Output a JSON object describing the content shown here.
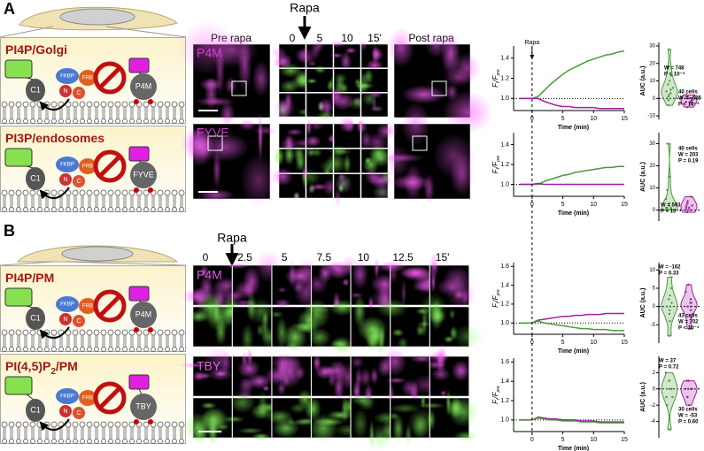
{
  "panel_letters": [
    "A",
    "B"
  ],
  "cartoon_labels": {
    "c1": "C1",
    "fkbp": "FKBP",
    "frb": "FRB",
    "n": "N",
    "c": "C"
  },
  "cartoons": [
    {
      "title": [
        "PI4P/Golgi"
      ],
      "probe": "P4M"
    },
    {
      "title": [
        "PI3P/endosomes"
      ],
      "probe": "FYVE"
    },
    {
      "title": [
        "PI4P/PM"
      ],
      "probe": "P4M"
    },
    {
      "title": [
        "PI(4,5)P",
        "2",
        "/PM"
      ],
      "probe": "TBY"
    }
  ],
  "micro_a": {
    "pre": "Pre rapa",
    "post": "Post rapa",
    "rapa": "Rapa",
    "times": [
      "0",
      "5",
      "10",
      "15'"
    ],
    "probes": [
      "P4M",
      "FYVE"
    ]
  },
  "micro_b": {
    "rapa": "Rapa",
    "times": [
      "0",
      "2.5",
      "5",
      "7.5",
      "10",
      "12.5",
      "15'"
    ],
    "probes": [
      "P4M",
      "TBY"
    ]
  },
  "chart_data": [
    {
      "type": "line",
      "xlabel": "Time (min)",
      "ylabel": [
        "F",
        "t",
        "/F",
        "pre"
      ],
      "annotation": {
        "text": "Rapa",
        "x": 0
      },
      "x": [
        -2,
        -1,
        0,
        1,
        2,
        3,
        4,
        5,
        6,
        7,
        8,
        9,
        10,
        11,
        12,
        13,
        14,
        15
      ],
      "xlim": [
        -3,
        15
      ],
      "xticks": [
        0,
        5,
        10,
        15
      ],
      "ylim": [
        0.88,
        1.52
      ],
      "yticks": [
        {
          "value": 1,
          "label": "1.0"
        },
        {
          "value": 1.2,
          "label": "1.2"
        },
        {
          "value": 1.4,
          "label": "1.4"
        }
      ],
      "baseline": 1,
      "series": [
        {
          "color": "#4a9a3a",
          "values": [
            1,
            1,
            1,
            1.02,
            1.08,
            1.14,
            1.19,
            1.24,
            1.28,
            1.31,
            1.34,
            1.37,
            1.39,
            1.41,
            1.43,
            1.44,
            1.46,
            1.47
          ]
        },
        {
          "color": "#a020a0",
          "values": [
            1,
            1,
            1,
            1,
            0.97,
            0.95,
            0.93,
            0.92,
            0.92,
            0.91,
            0.91,
            0.91,
            0.91,
            0.9,
            0.9,
            0.9,
            0.9,
            0.9
          ]
        }
      ]
    },
    {
      "type": "line",
      "xlabel": "Time (min)",
      "ylabel": [
        "F",
        "t",
        "/F",
        "pre"
      ],
      "x": [
        -2,
        -1,
        0,
        1,
        2,
        3,
        4,
        5,
        6,
        7,
        8,
        9,
        10,
        11,
        12,
        13,
        14,
        15
      ],
      "xlim": [
        -3,
        15
      ],
      "xticks": [
        0,
        5,
        10,
        15
      ],
      "ylim": [
        0.88,
        1.52
      ],
      "yticks": [
        {
          "value": 1,
          "label": "1.0"
        },
        {
          "value": 1.2,
          "label": "1.2"
        },
        {
          "value": 1.4,
          "label": "1.4"
        }
      ],
      "baseline": 1,
      "series": [
        {
          "color": "#4a9a3a",
          "values": [
            1,
            1,
            1,
            1,
            1.03,
            1.05,
            1.07,
            1.09,
            1.1,
            1.12,
            1.13,
            1.14,
            1.15,
            1.16,
            1.17,
            1.17,
            1.18,
            1.18
          ]
        },
        {
          "color": "#a020a0",
          "values": [
            1,
            1,
            1,
            1.01,
            1,
            1,
            1,
            1,
            1,
            1,
            1,
            1,
            1,
            1,
            1,
            1,
            1,
            1
          ]
        }
      ]
    },
    {
      "type": "line",
      "xlabel": "Time (min)",
      "ylabel": [
        "F",
        "t",
        "/F",
        "pre"
      ],
      "x": [
        -2,
        -1,
        0,
        1,
        2,
        3,
        4,
        5,
        6,
        7,
        8,
        9,
        10,
        11,
        12,
        13,
        14,
        15
      ],
      "xlim": [
        -3,
        15
      ],
      "xticks": [
        0,
        5,
        10,
        15
      ],
      "ylim": [
        0.88,
        1.64
      ],
      "yticks": [
        {
          "value": 1,
          "label": "1.0"
        },
        {
          "value": 1.2,
          "label": "1.2"
        },
        {
          "value": 1.4,
          "label": "1.4"
        },
        {
          "value": 1.6,
          "label": "1.6"
        }
      ],
      "baseline": 1,
      "series": [
        {
          "color": "#a020a0",
          "values": [
            1,
            1,
            1,
            1.03,
            1.04,
            1.05,
            1.06,
            1.07,
            1.07,
            1.08,
            1.08,
            1.09,
            1.09,
            1.09,
            1.1,
            1.1,
            1.1,
            1.1
          ]
        },
        {
          "color": "#4a9a3a",
          "values": [
            1,
            1,
            1,
            1.02,
            1,
            0.99,
            0.98,
            0.97,
            0.96,
            0.95,
            0.94,
            0.94,
            0.93,
            0.93,
            0.93,
            0.92,
            0.92,
            0.92
          ]
        }
      ]
    },
    {
      "type": "line",
      "xlabel": "Time (min)",
      "ylabel": [
        "F",
        "t",
        "/F",
        "pre"
      ],
      "x": [
        -2,
        -1,
        0,
        1,
        2,
        3,
        4,
        5,
        6,
        7,
        8,
        9,
        10,
        11,
        12,
        13,
        14,
        15
      ],
      "xlim": [
        -3,
        15
      ],
      "xticks": [
        0,
        5,
        10,
        15
      ],
      "ylim": [
        0.88,
        1.64
      ],
      "yticks": [
        {
          "value": 1,
          "label": "1.0"
        },
        {
          "value": 1.2,
          "label": "1.2"
        },
        {
          "value": 1.4,
          "label": "1.4"
        },
        {
          "value": 1.6,
          "label": "1.6"
        }
      ],
      "baseline": 1,
      "series": [
        {
          "color": "#a020a0",
          "values": [
            1,
            1,
            1,
            1.03,
            1.02,
            1.01,
            1.01,
            1,
            1,
            1,
            0.99,
            0.99,
            0.99,
            0.98,
            0.98,
            0.98,
            0.98,
            0.98
          ]
        },
        {
          "color": "#4a9a3a",
          "values": [
            1,
            1,
            1,
            1.02,
            1.01,
            1,
            1,
            0.99,
            0.99,
            0.99,
            0.98,
            0.98,
            0.98,
            0.97,
            0.97,
            0.97,
            0.97,
            0.97
          ]
        }
      ]
    },
    {
      "type": "violin",
      "ylabel": "AUC (a.u.)",
      "ylim": [
        -12,
        32
      ],
      "yticks": [
        -10,
        0,
        10,
        20,
        30
      ],
      "baseline": 0,
      "annotations": [
        "W = 748",
        "P < 10⁻⁴",
        "40 cells",
        "W = −625",
        "P < 10⁻⁴"
      ],
      "series": [
        {
          "color": "#4a9a3a",
          "values": [
            -4,
            -1,
            1,
            2,
            3,
            4,
            5,
            6,
            8,
            10,
            13,
            18,
            28
          ]
        },
        {
          "color": "#a020a0",
          "values": [
            -5,
            -3,
            -2,
            -2,
            -1,
            -1,
            0,
            0,
            1,
            2
          ]
        }
      ]
    },
    {
      "type": "violin",
      "ylabel": "AUC (a.u.)",
      "ylim": [
        -5,
        35
      ],
      "yticks": [
        0,
        10,
        20,
        30
      ],
      "baseline": 0,
      "annotations": [
        "40 cells",
        "W = 203",
        "P = 0.19",
        "W = 593",
        "P < 10⁻⁴"
      ],
      "series": [
        {
          "color": "#4a9a3a",
          "values": [
            0,
            0,
            0,
            0,
            1,
            1,
            1,
            2,
            3,
            5,
            9,
            15,
            30
          ]
        },
        {
          "color": "#a020a0",
          "values": [
            -1,
            0,
            0,
            1,
            1,
            2,
            2,
            3,
            4,
            6
          ]
        }
      ]
    },
    {
      "type": "violin",
      "ylabel": "AUC (a.u.)",
      "ylim": [
        -10,
        12
      ],
      "yticks": [
        -5,
        0,
        5,
        10
      ],
      "baseline": 0,
      "annotations": [
        "W = -162",
        "P = 0.33",
        "43 cells",
        "W = 702",
        "P < 10⁻⁴"
      ],
      "series": [
        {
          "color": "#4a9a3a",
          "values": [
            -8,
            -4,
            -2,
            -1,
            0,
            0,
            1,
            2,
            3,
            5,
            8
          ]
        },
        {
          "color": "#a020a0",
          "values": [
            -6,
            -3,
            -1,
            0,
            0,
            1,
            1,
            2,
            4,
            6
          ]
        }
      ]
    },
    {
      "type": "violin",
      "ylabel": "AUC (a.u.)",
      "ylim": [
        -6,
        4
      ],
      "yticks": [
        -4,
        -2,
        0,
        2
      ],
      "baseline": 0,
      "annotations": [
        "W = 37",
        "P = 0.72",
        "30 cells",
        "W = -53",
        "P = 0.60"
      ],
      "series": [
        {
          "color": "#4a9a3a",
          "values": [
            -5,
            -2,
            -1,
            -1,
            0,
            0,
            0,
            1,
            1,
            2
          ]
        },
        {
          "color": "#a020a0",
          "values": [
            -2,
            -1,
            -1,
            0,
            0,
            0,
            0,
            1,
            1
          ]
        }
      ]
    }
  ]
}
